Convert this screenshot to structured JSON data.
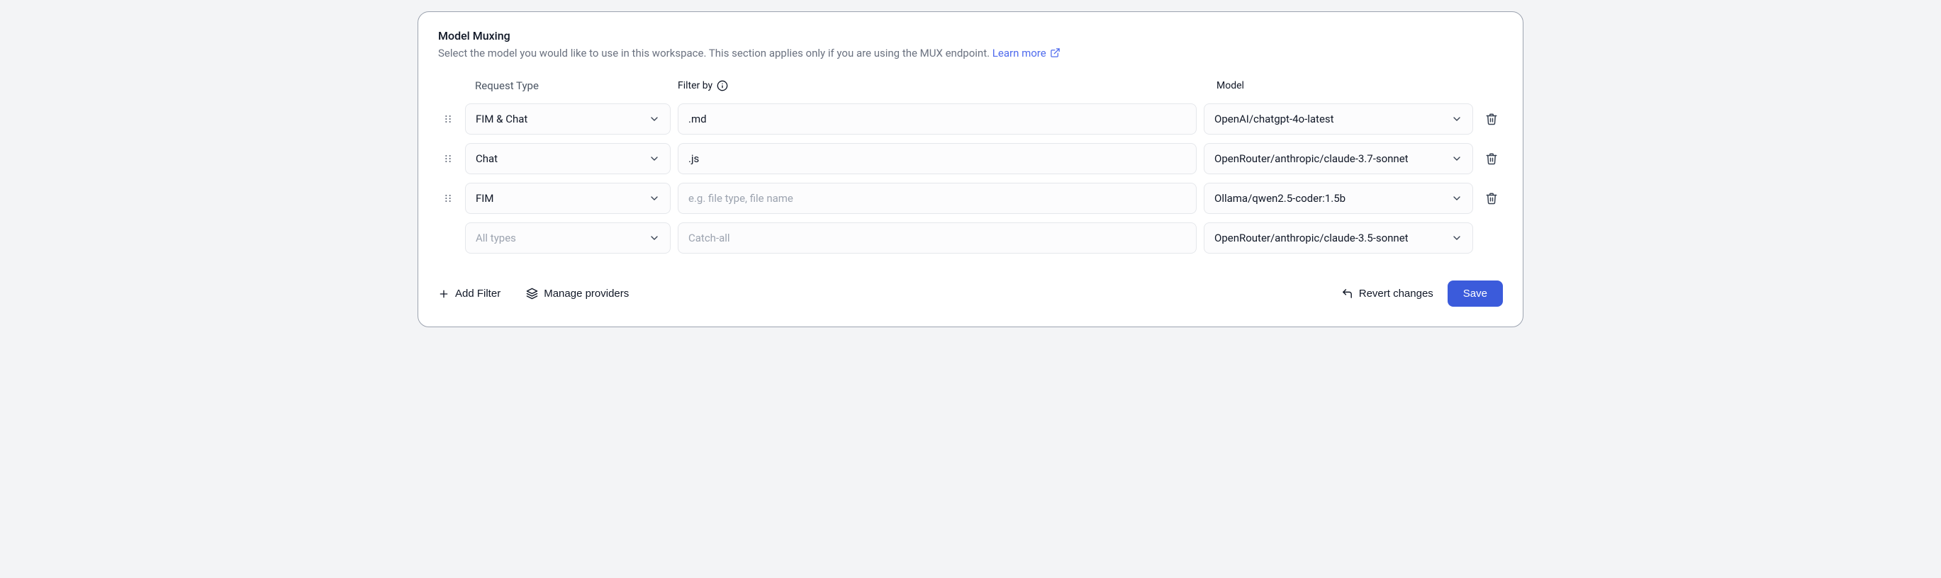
{
  "header": {
    "title": "Model Muxing",
    "subtitle_prefix": "Select the model you would like to use in this workspace. This section applies only if you are using the MUX endpoint. ",
    "learn_more": "Learn more"
  },
  "columns": {
    "request_type": "Request Type",
    "filter_by": "Filter by",
    "model": "Model"
  },
  "filter_placeholder": "e.g. file type, file name",
  "catchall_placeholder": "Catch-all",
  "alltypes_placeholder": "All types",
  "rows": [
    {
      "request_type": "FIM & Chat",
      "filter": ".md",
      "model": "OpenAI/chatgpt-4o-latest",
      "draggable": true,
      "deletable": true,
      "disabled": false
    },
    {
      "request_type": "Chat",
      "filter": ".js",
      "model": "OpenRouter/anthropic/claude-3.7-sonnet",
      "draggable": true,
      "deletable": true,
      "disabled": false
    },
    {
      "request_type": "FIM",
      "filter": "",
      "model": "Ollama/qwen2.5-coder:1.5b",
      "draggable": true,
      "deletable": true,
      "disabled": false
    },
    {
      "request_type": "",
      "filter": "",
      "model": "OpenRouter/anthropic/claude-3.5-sonnet",
      "draggable": false,
      "deletable": false,
      "disabled": true
    }
  ],
  "footer": {
    "add_filter": "Add Filter",
    "manage_providers": "Manage providers",
    "revert": "Revert changes",
    "save": "Save"
  },
  "colors": {
    "primary": "#3b5bdb",
    "link": "#4f6bed",
    "border": "#e5e7eb",
    "text": "#111827",
    "muted": "#6b7280",
    "placeholder": "#9ca3af",
    "panel_bg": "#ffffff",
    "field_bg": "#fcfcfd"
  }
}
